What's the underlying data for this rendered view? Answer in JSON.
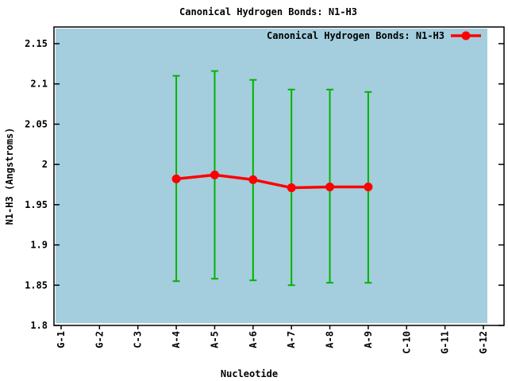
{
  "chart_data": {
    "type": "line",
    "title": "Canonical Hydrogen Bonds: N1-H3",
    "xlabel": "Nucleotide",
    "ylabel": "N1-H3 (Angstroms)",
    "categories": [
      "G-1",
      "G-2",
      "C-3",
      "A-4",
      "A-5",
      "A-6",
      "A-7",
      "A-8",
      "A-9",
      "C-10",
      "G-11",
      "G-12"
    ],
    "ylim": [
      1.8,
      2.15
    ],
    "ytick_values": [
      1.8,
      1.85,
      1.9,
      1.95,
      2.0,
      2.05,
      2.1,
      2.15
    ],
    "ytick_labels": [
      "1.8",
      "1.85",
      "1.9",
      "1.95",
      "2",
      "2.05",
      "2.1",
      "2.15"
    ],
    "grid": false,
    "legend": {
      "position": "top-right-inside",
      "entries": [
        {
          "label": "Canonical Hydrogen Bonds: N1-H3",
          "color": "#ff0000",
          "marker": "filled-circle-on-line"
        }
      ]
    },
    "series": [
      {
        "name": "Canonical Hydrogen Bonds: N1-H3",
        "color": "#ff0000",
        "error_bar_color": "#00b400",
        "points": [
          {
            "category": "A-4",
            "value": 1.982,
            "err_low": 1.855,
            "err_high": 2.11
          },
          {
            "category": "A-5",
            "value": 1.987,
            "err_low": 1.858,
            "err_high": 2.116
          },
          {
            "category": "A-6",
            "value": 1.981,
            "err_low": 1.856,
            "err_high": 2.105
          },
          {
            "category": "A-7",
            "value": 1.971,
            "err_low": 1.85,
            "err_high": 2.093
          },
          {
            "category": "A-8",
            "value": 1.972,
            "err_low": 1.853,
            "err_high": 2.093
          },
          {
            "category": "A-9",
            "value": 1.972,
            "err_low": 1.853,
            "err_high": 2.09
          }
        ]
      }
    ],
    "colors": {
      "plot_background": "#a4cedd",
      "page_background": "#ffffff",
      "axis_border": "#000000",
      "text": "#000000"
    }
  }
}
